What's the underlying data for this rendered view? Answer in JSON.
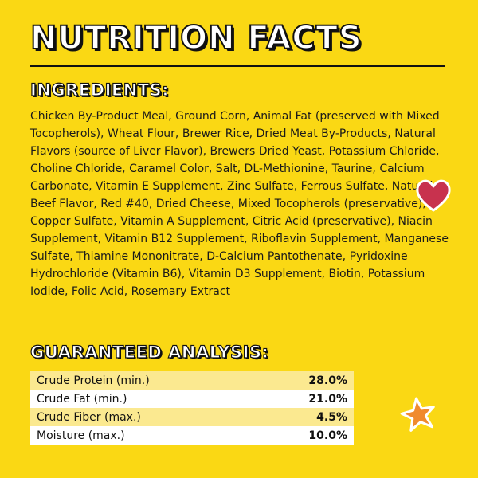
{
  "header": {
    "title": "NUTRITION FACTS"
  },
  "ingredients": {
    "heading": "INGREDIENTS:",
    "text": "Chicken By-Product Meal, Ground Corn, Animal Fat (preserved with Mixed Tocopherols), Wheat Flour, Brewer Rice, Dried Meat By-Products, Natural Flavors (source of Liver Flavor), Brewers Dried Yeast, Potassium Chloride, Choline Chloride, Caramel Color, Salt, DL-Methionine, Taurine, Calcium Carbonate, Vitamin E Supplement, Zinc Sulfate, Ferrous Sulfate, Natural Beef Flavor, Red #40, Dried Cheese, Mixed Tocopherols (preservative), Copper Sulfate, Vitamin A Supplement, Citric Acid (preservative), Niacin Supplement, Vitamin B12 Supplement, Riboflavin Supplement, Manganese Sulfate, Thiamine Mononitrate, D-Calcium Pantothenate, Pyridoxine Hydrochloride (Vitamin B6), Vitamin D3 Supplement, Biotin, Potassium Iodide, Folic Acid, Rosemary Extract"
  },
  "analysis": {
    "heading": "GUARANTEED ANALYSIS:",
    "rows": [
      {
        "label": "Crude Protein (min.)",
        "value": "28.0%"
      },
      {
        "label": "Crude Fat (min.)",
        "value": "21.0%"
      },
      {
        "label": "Crude Fiber (max.)",
        "value": "4.5%"
      },
      {
        "label": "Moisture (max.)",
        "value": "10.0%"
      }
    ]
  },
  "decorations": {
    "heart_icon": "heart-icon",
    "star_icon": "star-icon",
    "background_color": "#FAD814",
    "heart_color": "#C8324E",
    "star_color": "#F08A2E"
  }
}
